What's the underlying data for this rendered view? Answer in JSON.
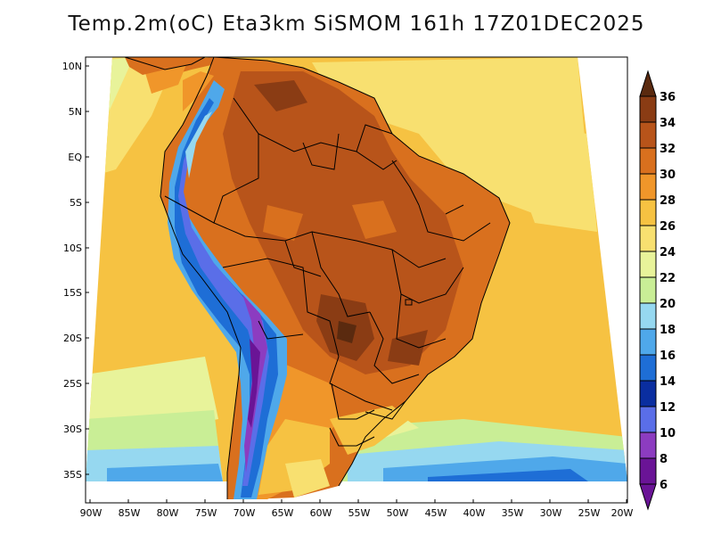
{
  "title": "Temp.2m(oC) Eta3km SiSMOM 161h 17Z01DEC2025",
  "map": {
    "lat_ticks": [
      "10N",
      "5N",
      "EQ",
      "5S",
      "10S",
      "15S",
      "20S",
      "25S",
      "30S",
      "35S"
    ],
    "lon_ticks": [
      "90W",
      "85W",
      "80W",
      "75W",
      "70W",
      "65W",
      "60W",
      "55W",
      "50W",
      "45W",
      "40W",
      "35W",
      "30W",
      "25W",
      "20W"
    ],
    "lat_range": [
      -38,
      12
    ],
    "lon_range": [
      -90.5,
      -19.5
    ]
  },
  "colorbar": {
    "labels": [
      "36",
      "34",
      "32",
      "30",
      "28",
      "26",
      "24",
      "22",
      "20",
      "18",
      "16",
      "14",
      "12",
      "10",
      "8",
      "6"
    ],
    "colors": [
      "#5a2a0f",
      "#8a3c14",
      "#b8541a",
      "#d9701e",
      "#f0962a",
      "#f6c242",
      "#f8e070",
      "#e8f39a",
      "#c9ee96",
      "#96d8f0",
      "#4fa8ea",
      "#1e6ed6",
      "#0a2ea0",
      "#5a6ee8",
      "#8c3cc0",
      "#6a1496"
    ]
  }
}
